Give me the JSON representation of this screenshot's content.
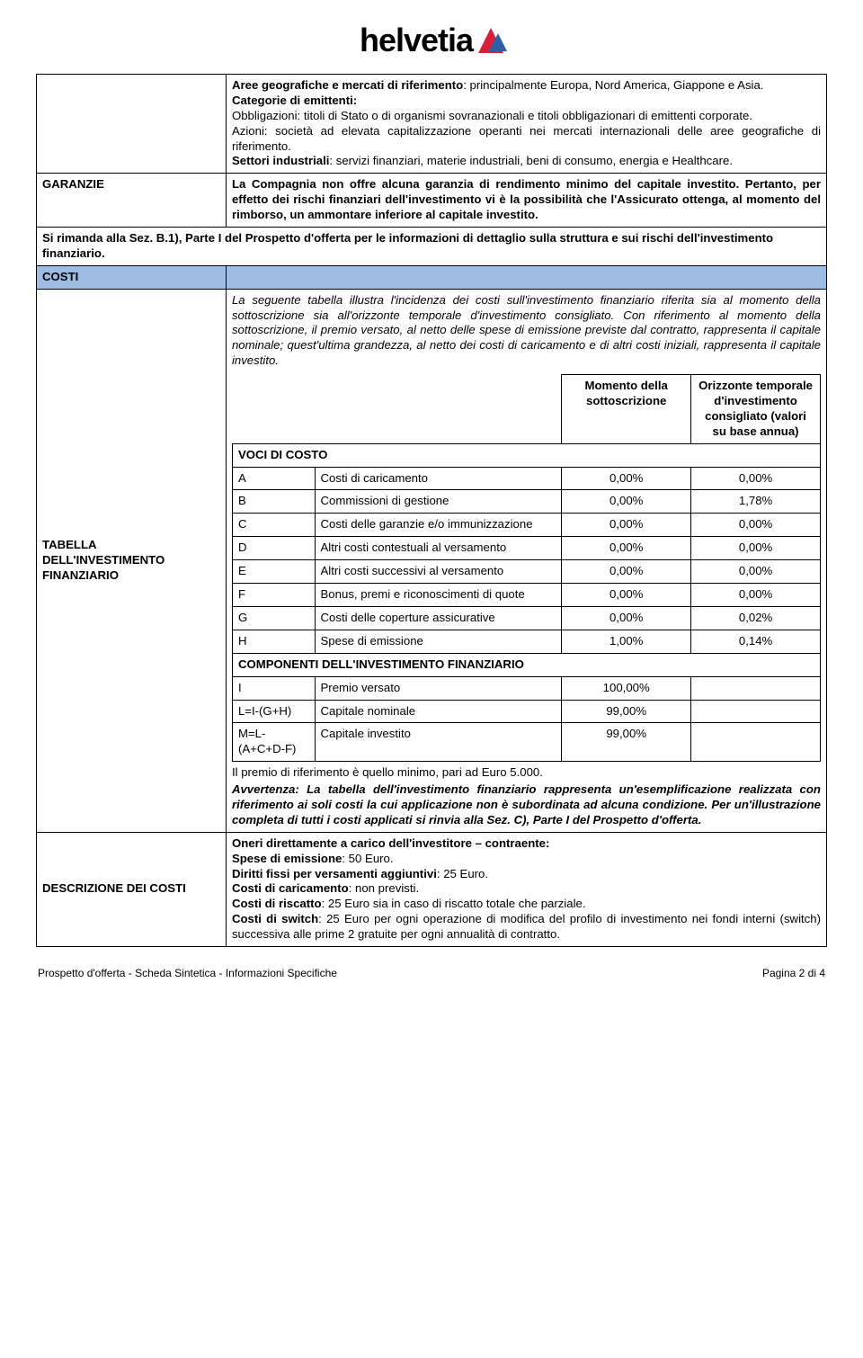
{
  "logo": {
    "text": "helvetia"
  },
  "rows": {
    "r1_label": "",
    "r1_text": "Aree geografiche e mercati di riferimento: principalmente Europa, Nord America, Giappone e Asia.\nCategorie di emittenti:\nObbligazioni: titoli di Stato o di organismi sovranazionali e titoli obbligazionari di emittenti corporate.\nAzioni: società ad elevata capitalizzazione operanti nei mercati internazionali delle aree geografiche di riferimento.\nSettori industriali: servizi finanziari, materie industriali, beni di consumo, energia e Healthcare.",
    "r2_label": "GARANZIE",
    "r2_text": "La Compagnia non offre alcuna garanzia di rendimento minimo del capitale investito. Pertanto, per effetto dei rischi finanziari dell'investimento vi è la possibilità che l'Assicurato ottenga, al momento del rimborso, un ammontare inferiore al capitale investito.",
    "r3_text": "Si rimanda alla Sez. B.1), Parte I del Prospetto d'offerta per le informazioni di dettaglio sulla struttura e sui rischi dell'investimento finanziario.",
    "costi_label": "COSTI",
    "r4_label": "TABELLA DELL'INVESTIMENTO FINANZIARIO",
    "r4_intro": "La seguente tabella illustra l'incidenza dei costi sull'investimento finanziario riferita sia al momento della sottoscrizione sia all'orizzonte temporale d'investimento consigliato. Con riferimento al momento della sottoscrizione, il premio versato, al netto delle spese di emissione previste dal contratto, rappresenta il capitale nominale; quest'ultima grandezza, al netto dei costi di caricamento e di altri costi iniziali, rappresenta il capitale investito.",
    "r4_note": "Il premio di riferimento è quello minimo, pari ad Euro 5.000.",
    "r4_warn": "Avvertenza: La tabella dell'investimento finanziario rappresenta un'esemplificazione realizzata con riferimento ai soli costi la cui applicazione non è subordinata ad alcuna condizione. Per un'illustrazione completa di tutti i costi applicati si rinvia alla Sez. C), Parte I del Prospetto d'offerta.",
    "r5_label": "DESCRIZIONE DEI COSTI",
    "r5_text": "Oneri direttamente a carico dell'investitore – contraente:\nSpese di emissione: 50 Euro.\nDiritti fissi per versamenti aggiuntivi: 25 Euro.\nCosti di caricamento: non previsti.\nCosti di riscatto: 25 Euro sia in caso di riscatto totale che parziale.\nCosti di switch: 25 Euro per ogni operazione di modifica del profilo di investimento nei fondi interni (switch) successiva alle prime 2 gratuite per ogni annualità di contratto."
  },
  "inner": {
    "hdr_momento": "Momento della sottoscrizione",
    "hdr_orizzonte": "Orizzonte temporale d'investimento consigliato (valori su base annua)",
    "voci": "VOCI DI COSTO",
    "componenti": "COMPONENTI DELL'INVESTIMENTO FINANZIARIO",
    "rows": [
      {
        "k": "A",
        "d": "Costi di caricamento",
        "v1": "0,00%",
        "v2": "0,00%"
      },
      {
        "k": "B",
        "d": "Commissioni di gestione",
        "v1": "0,00%",
        "v2": "1,78%"
      },
      {
        "k": "C",
        "d": "Costi delle garanzie e/o immunizzazione",
        "v1": "0,00%",
        "v2": "0,00%"
      },
      {
        "k": "D",
        "d": "Altri costi contestuali al versamento",
        "v1": "0,00%",
        "v2": "0,00%"
      },
      {
        "k": "E",
        "d": "Altri costi successivi al versamento",
        "v1": "0,00%",
        "v2": "0,00%"
      },
      {
        "k": "F",
        "d": "Bonus, premi e riconoscimenti di quote",
        "v1": "0,00%",
        "v2": "0,00%"
      },
      {
        "k": "G",
        "d": "Costi delle coperture assicurative",
        "v1": "0,00%",
        "v2": "0,02%"
      },
      {
        "k": "H",
        "d": "Spese di emissione",
        "v1": "1,00%",
        "v2": "0,14%"
      }
    ],
    "comp": [
      {
        "k": "I",
        "d": "Premio versato",
        "v1": "100,00%"
      },
      {
        "k": "L=I-(G+H)",
        "d": "Capitale nominale",
        "v1": "99,00%"
      },
      {
        "k": "M=L-(A+C+D-F)",
        "d": "Capitale investito",
        "v1": "99,00%"
      }
    ]
  },
  "footer": {
    "left": "Prospetto d'offerta - Scheda Sintetica - Informazioni Specifiche",
    "right": "Pagina 2 di 4"
  },
  "colors": {
    "band": "#9fbde4",
    "border": "#000000"
  }
}
